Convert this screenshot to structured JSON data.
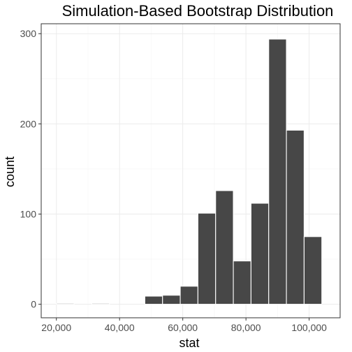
{
  "chart_data": {
    "type": "bar",
    "title": "Simulation-Based Bootstrap Distribution",
    "xlabel": "stat",
    "ylabel": "count",
    "xlim": [
      15200,
      109800
    ],
    "ylim": [
      -15,
      311
    ],
    "x_ticks": [
      20000,
      40000,
      60000,
      80000,
      100000
    ],
    "x_tick_labels": [
      "20,000",
      "40,000",
      "60,000",
      "80,000",
      "100,000"
    ],
    "y_ticks": [
      0,
      100,
      200,
      300
    ],
    "y_tick_labels": [
      "0",
      "100",
      "200",
      "300"
    ],
    "grid": true,
    "bar_color": "#474747",
    "bar_border_color": "#ffffff",
    "bins": [
      {
        "x0": 20000,
        "x1": 25600,
        "count": 1
      },
      {
        "x0": 25600,
        "x1": 31200,
        "count": 0
      },
      {
        "x0": 31200,
        "x1": 36800,
        "count": 1
      },
      {
        "x0": 36800,
        "x1": 42400,
        "count": 0
      },
      {
        "x0": 42400,
        "x1": 48000,
        "count": 0
      },
      {
        "x0": 48000,
        "x1": 53600,
        "count": 9
      },
      {
        "x0": 53600,
        "x1": 59200,
        "count": 10
      },
      {
        "x0": 59200,
        "x1": 64800,
        "count": 20
      },
      {
        "x0": 64800,
        "x1": 70400,
        "count": 101
      },
      {
        "x0": 70400,
        "x1": 76000,
        "count": 126
      },
      {
        "x0": 76000,
        "x1": 81600,
        "count": 48
      },
      {
        "x0": 81600,
        "x1": 87200,
        "count": 112
      },
      {
        "x0": 87200,
        "x1": 92800,
        "count": 294
      },
      {
        "x0": 92800,
        "x1": 98400,
        "count": 193
      },
      {
        "x0": 98400,
        "x1": 104000,
        "count": 75
      }
    ]
  }
}
